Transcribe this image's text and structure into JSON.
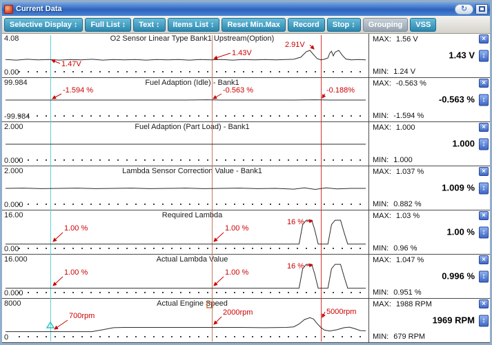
{
  "window": {
    "title": "Current Data"
  },
  "icons": {
    "close": "×",
    "updown": "↕",
    "retry": "↻"
  },
  "toolbar": {
    "spinner_glyph": "↕",
    "buttons": [
      {
        "label": "Selective Display",
        "spinner": true,
        "active": false
      },
      {
        "label": "Full List",
        "spinner": true,
        "active": false
      },
      {
        "label": "Text",
        "spinner": true,
        "active": false
      },
      {
        "label": "Items List",
        "spinner": true,
        "active": false
      },
      {
        "label": "Reset Min.Max",
        "spinner": false,
        "active": false
      },
      {
        "label": "Record",
        "spinner": false,
        "active": false
      },
      {
        "label": "Stop",
        "spinner": true,
        "active": false
      },
      {
        "label": "Grouping",
        "spinner": false,
        "active": true
      },
      {
        "label": "VSS",
        "spinner": false,
        "active": false
      }
    ]
  },
  "panel": {
    "max_label": "MAX:",
    "min_label": "MIN:"
  },
  "charts": [
    {
      "title": "O2 Sensor Linear Type Bank1 Upstream(Option)",
      "scale_max": "4.08",
      "scale_min": "0.00",
      "max": "1.56 V",
      "value": "1.43 V",
      "min": "1.24 V",
      "series": [
        [
          0,
          0.36
        ],
        [
          0.03,
          0.34
        ],
        [
          0.06,
          0.37
        ],
        [
          0.09,
          0.35
        ],
        [
          0.12,
          0.36
        ],
        [
          0.15,
          0.34
        ],
        [
          0.18,
          0.36
        ],
        [
          0.21,
          0.35
        ],
        [
          0.24,
          0.37
        ],
        [
          0.27,
          0.34
        ],
        [
          0.3,
          0.36
        ],
        [
          0.33,
          0.35
        ],
        [
          0.36,
          0.36
        ],
        [
          0.39,
          0.34
        ],
        [
          0.42,
          0.36
        ],
        [
          0.45,
          0.35
        ],
        [
          0.48,
          0.36
        ],
        [
          0.51,
          0.34
        ],
        [
          0.54,
          0.36
        ],
        [
          0.57,
          0.35
        ],
        [
          0.6,
          0.36
        ],
        [
          0.63,
          0.34
        ],
        [
          0.66,
          0.36
        ],
        [
          0.69,
          0.35
        ],
        [
          0.72,
          0.36
        ],
        [
          0.75,
          0.35
        ],
        [
          0.78,
          0.36
        ],
        [
          0.8,
          0.37
        ],
        [
          0.82,
          0.45
        ],
        [
          0.835,
          0.66
        ],
        [
          0.845,
          0.71
        ],
        [
          0.855,
          0.55
        ],
        [
          0.865,
          0.4
        ],
        [
          0.875,
          0.35
        ],
        [
          0.885,
          0.37
        ],
        [
          0.895,
          0.42
        ],
        [
          0.9,
          0.6
        ],
        [
          0.905,
          0.68
        ],
        [
          0.91,
          0.5
        ],
        [
          0.915,
          0.64
        ],
        [
          0.925,
          0.71
        ],
        [
          0.935,
          0.52
        ],
        [
          0.945,
          0.38
        ],
        [
          0.96,
          0.35
        ],
        [
          0.98,
          0.36
        ],
        [
          1,
          0.35
        ]
      ]
    },
    {
      "title": "Fuel Adaption (Idle) - Bank1",
      "scale_max": "99.984",
      "scale_min": "-99.984",
      "max": "-0.563 %",
      "value": "-0.563 %",
      "min": "-1.594 %",
      "series": [
        [
          0,
          0.5
        ],
        [
          0.1,
          0.5
        ],
        [
          0.2,
          0.5
        ],
        [
          0.3,
          0.5
        ],
        [
          0.4,
          0.5
        ],
        [
          0.5,
          0.5
        ],
        [
          0.56,
          0.51
        ],
        [
          0.6,
          0.5
        ],
        [
          0.7,
          0.5
        ],
        [
          0.8,
          0.5
        ],
        [
          0.86,
          0.51
        ],
        [
          0.9,
          0.5
        ],
        [
          1,
          0.5
        ]
      ]
    },
    {
      "title": "Fuel Adaption (Part Load) - Bank1",
      "scale_max": "2.000",
      "scale_min": "0.000",
      "max": "1.000",
      "value": "1.000",
      "min": "1.000",
      "series": [
        [
          0,
          0.5
        ],
        [
          1,
          0.5
        ]
      ]
    },
    {
      "title": "Lambda Sensor Correction Value - Bank1",
      "scale_max": "2.000",
      "scale_min": "0.000",
      "max": "1.037 %",
      "value": "1.009 %",
      "min": "0.882 %",
      "series": [
        [
          0,
          0.5
        ],
        [
          0.05,
          0.51
        ],
        [
          0.1,
          0.49
        ],
        [
          0.15,
          0.5
        ],
        [
          0.2,
          0.51
        ],
        [
          0.25,
          0.49
        ],
        [
          0.3,
          0.5
        ],
        [
          0.35,
          0.51
        ],
        [
          0.4,
          0.49
        ],
        [
          0.45,
          0.5
        ],
        [
          0.5,
          0.51
        ],
        [
          0.55,
          0.49
        ],
        [
          0.6,
          0.5
        ],
        [
          0.65,
          0.51
        ],
        [
          0.7,
          0.49
        ],
        [
          0.75,
          0.5
        ],
        [
          0.8,
          0.47
        ],
        [
          0.83,
          0.52
        ],
        [
          0.86,
          0.46
        ],
        [
          0.89,
          0.52
        ],
        [
          0.92,
          0.48
        ],
        [
          0.96,
          0.5
        ],
        [
          1,
          0.5
        ]
      ]
    },
    {
      "title": "Required Lambda",
      "scale_max": "16.00",
      "scale_min": "0.00",
      "max": "1.03 %",
      "value": "1.00 %",
      "min": "0.96 %",
      "series": [
        [
          0,
          0.06
        ],
        [
          0.2,
          0.06
        ],
        [
          0.4,
          0.06
        ],
        [
          0.6,
          0.06
        ],
        [
          0.78,
          0.06
        ],
        [
          0.815,
          0.06
        ],
        [
          0.825,
          0.8
        ],
        [
          0.835,
          0.97
        ],
        [
          0.85,
          0.97
        ],
        [
          0.858,
          0.62
        ],
        [
          0.868,
          0.06
        ],
        [
          0.895,
          0.06
        ],
        [
          0.905,
          0.8
        ],
        [
          0.915,
          0.97
        ],
        [
          0.93,
          0.97
        ],
        [
          0.94,
          0.5
        ],
        [
          0.95,
          0.06
        ],
        [
          1,
          0.06
        ]
      ]
    },
    {
      "title": "Actual Lambda Value",
      "scale_max": "16.000",
      "scale_min": "0.000",
      "max": "1.047 %",
      "value": "0.996 %",
      "min": "0.951 %",
      "series": [
        [
          0,
          0.06
        ],
        [
          0.2,
          0.06
        ],
        [
          0.4,
          0.06
        ],
        [
          0.6,
          0.06
        ],
        [
          0.78,
          0.06
        ],
        [
          0.815,
          0.06
        ],
        [
          0.825,
          0.8
        ],
        [
          0.835,
          0.97
        ],
        [
          0.85,
          0.97
        ],
        [
          0.858,
          0.62
        ],
        [
          0.868,
          0.06
        ],
        [
          0.895,
          0.06
        ],
        [
          0.905,
          0.8
        ],
        [
          0.915,
          0.97
        ],
        [
          0.93,
          0.97
        ],
        [
          0.94,
          0.5
        ],
        [
          0.95,
          0.06
        ],
        [
          1,
          0.06
        ]
      ]
    },
    {
      "title": "Actual Engine Speed",
      "scale_max": "8000",
      "scale_min": "0",
      "max": "1988 RPM",
      "value": "1969 RPM",
      "min": "679 RPM",
      "series": [
        [
          0,
          0.09
        ],
        [
          0.1,
          0.09
        ],
        [
          0.2,
          0.09
        ],
        [
          0.24,
          0.09
        ],
        [
          0.27,
          0.16
        ],
        [
          0.3,
          0.24
        ],
        [
          0.33,
          0.25
        ],
        [
          0.45,
          0.25
        ],
        [
          0.55,
          0.25
        ],
        [
          0.65,
          0.25
        ],
        [
          0.72,
          0.24
        ],
        [
          0.78,
          0.25
        ],
        [
          0.8,
          0.27
        ],
        [
          0.815,
          0.38
        ],
        [
          0.83,
          0.55
        ],
        [
          0.845,
          0.62
        ],
        [
          0.855,
          0.57
        ],
        [
          0.865,
          0.4
        ],
        [
          0.875,
          0.25
        ],
        [
          0.885,
          0.15
        ],
        [
          0.9,
          0.11
        ],
        [
          0.92,
          0.16
        ],
        [
          0.94,
          0.24
        ],
        [
          0.955,
          0.26
        ],
        [
          0.97,
          0.2
        ],
        [
          0.985,
          0.13
        ],
        [
          1,
          0.12
        ]
      ]
    }
  ],
  "cursors": [
    {
      "name": "cursor-a",
      "x": 70,
      "color": "#5fd0d0"
    },
    {
      "name": "cursor-b",
      "x": 304,
      "color": "#c87858"
    },
    {
      "name": "cursor-c",
      "x": 462,
      "color": "#d03030"
    }
  ],
  "annotations": [
    {
      "text": "1.47V",
      "tx": 86,
      "ty": 47,
      "lx": 84,
      "ly": 43,
      "ax": 72,
      "ay": 38
    },
    {
      "text": "1.43V",
      "tx": 333,
      "ty": 31,
      "lx": 331,
      "ly": 28,
      "ax": 307,
      "ay": 36
    },
    {
      "text": "2.91V",
      "tx": 410,
      "ty": 19,
      "lx": 446,
      "ly": 16,
      "ax": 452,
      "ay": 22
    },
    {
      "text": "-1.594 %",
      "tx": 88,
      "ty": 85,
      "lx": 86,
      "ly": 87,
      "ax": 73,
      "ay": 94
    },
    {
      "text": "-0.563 %",
      "tx": 320,
      "ty": 85,
      "lx": 318,
      "ly": 87,
      "ax": 306,
      "ay": 94
    },
    {
      "text": "-0.188%",
      "tx": 470,
      "ty": 85,
      "lx": 468,
      "ly": 87,
      "ax": 464,
      "ay": 93
    },
    {
      "text": "1.00 %",
      "tx": 90,
      "ty": 285,
      "lx": 88,
      "ly": 288,
      "ax": 74,
      "ay": 301
    },
    {
      "text": "1.00 %",
      "tx": 323,
      "ty": 285,
      "lx": 321,
      "ly": 288,
      "ax": 307,
      "ay": 301
    },
    {
      "text": "16 %",
      "tx": 413,
      "ty": 276,
      "lx": 441,
      "ly": 272,
      "ax": 450,
      "ay": 271
    },
    {
      "text": "1.00 %",
      "tx": 90,
      "ty": 349,
      "lx": 88,
      "ly": 352,
      "ax": 74,
      "ay": 365
    },
    {
      "text": "1.00 %",
      "tx": 323,
      "ty": 349,
      "lx": 321,
      "ly": 352,
      "ax": 307,
      "ay": 365
    },
    {
      "text": "16 %",
      "tx": 413,
      "ty": 340,
      "lx": 441,
      "ly": 336,
      "ax": 450,
      "ay": 335
    },
    {
      "text": "700rpm",
      "tx": 97,
      "ty": 412,
      "lx": 95,
      "ly": 415,
      "ax": 76,
      "ay": 428
    },
    {
      "text": "2000rpm",
      "tx": 320,
      "ty": 407,
      "lx": 318,
      "ly": 410,
      "ax": 307,
      "ay": 421
    },
    {
      "text": "5000rpm",
      "tx": 470,
      "ty": 406,
      "lx": 468,
      "ly": 403,
      "ax": 464,
      "ay": 411
    }
  ],
  "markers": {
    "triangle": {
      "x": 70,
      "y": 418,
      "color": "#2cc4c4"
    },
    "square": {
      "x": 297,
      "y": 389,
      "size": 8,
      "color": "#d0703c"
    }
  }
}
